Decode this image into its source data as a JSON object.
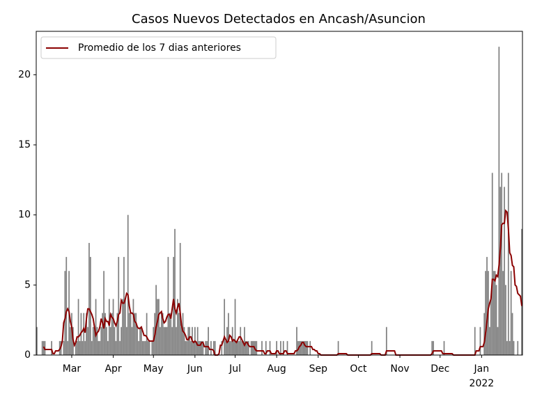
{
  "chart_data": {
    "type": "bar_line",
    "title": "Casos Nuevos Detectados en Ancash/Asuncion",
    "values": [
      2,
      0,
      0,
      0,
      1,
      1,
      1,
      0,
      0,
      0,
      0,
      1,
      0,
      0,
      0,
      0,
      0,
      1,
      1,
      0,
      1,
      6,
      7,
      1,
      6,
      2,
      3,
      2,
      0,
      1,
      1,
      4,
      1,
      3,
      1,
      3,
      1,
      3,
      2,
      8,
      7,
      1,
      2,
      2,
      4,
      2,
      1,
      1,
      2,
      3,
      6,
      3,
      2,
      1,
      4,
      2,
      3,
      4,
      2,
      1,
      3,
      7,
      1,
      2,
      4,
      7,
      4,
      2,
      10,
      3,
      3,
      2,
      4,
      3,
      3,
      2,
      1,
      2,
      2,
      1,
      1,
      1,
      3,
      1,
      1,
      0,
      1,
      2,
      3,
      5,
      4,
      4,
      2,
      3,
      3,
      2,
      2,
      2,
      7,
      3,
      3,
      2,
      7,
      9,
      2,
      4,
      3,
      8,
      2,
      3,
      2,
      1,
      1,
      2,
      2,
      1,
      2,
      1,
      2,
      1,
      2,
      1,
      1,
      1,
      1,
      0,
      1,
      1,
      2,
      0,
      1,
      0,
      1,
      1,
      0,
      0,
      0,
      0,
      1,
      0,
      4,
      1,
      2,
      3,
      1,
      1,
      2,
      1,
      4,
      1,
      1,
      1,
      2,
      1,
      1,
      2,
      1,
      1,
      1,
      0,
      1,
      1,
      1,
      1,
      1,
      0,
      0,
      0,
      1,
      0,
      0,
      1,
      0,
      0,
      1,
      0,
      0,
      0,
      0,
      1,
      0,
      0,
      1,
      0,
      1,
      0,
      0,
      1,
      0,
      0,
      0,
      0,
      0,
      0,
      2,
      1,
      1,
      1,
      1,
      1,
      1,
      1,
      1,
      0,
      1,
      0,
      0,
      0,
      0,
      0,
      0,
      0,
      0,
      0,
      0,
      0,
      0,
      0,
      0,
      0,
      0,
      0,
      0,
      0,
      0,
      1,
      0,
      0,
      0,
      0,
      0,
      0,
      0,
      0,
      0,
      0,
      0,
      0,
      0,
      0,
      0,
      0,
      0,
      0,
      0,
      0,
      0,
      0,
      0,
      0,
      1,
      0,
      0,
      0,
      0,
      0,
      0,
      0,
      0,
      0,
      0,
      2,
      0,
      0,
      0,
      0,
      0,
      0,
      0,
      0,
      0,
      0,
      0,
      0,
      0,
      0,
      0,
      0,
      0,
      0,
      0,
      0,
      0,
      0,
      0,
      0,
      0,
      0,
      0,
      0,
      0,
      0,
      0,
      0,
      0,
      1,
      1,
      0,
      0,
      0,
      0,
      0,
      0,
      0,
      1,
      0,
      0,
      0,
      0,
      0,
      0,
      0,
      0,
      0,
      0,
      0,
      0,
      0,
      0,
      0,
      0,
      0,
      0,
      0,
      0,
      0,
      0,
      2,
      0,
      0,
      0,
      2,
      0,
      0,
      3,
      6,
      7,
      6,
      2,
      4,
      13,
      6,
      6,
      5,
      2,
      22,
      12,
      13,
      6,
      12,
      5,
      1,
      13,
      1,
      6,
      3,
      1,
      0,
      0,
      1,
      0,
      0,
      9
    ],
    "bar_color": "#808080",
    "series": [
      {
        "name": "Promedio de los 7 dias anteriores",
        "color": "#8b0000",
        "values": [
          null,
          null,
          null,
          null,
          null,
          0.6,
          0.4,
          0.4,
          0.4,
          0.4,
          0.4,
          0.4,
          0.1,
          0.1,
          0.3,
          0.3,
          0.3,
          0.4,
          0.6,
          1.0,
          2.3,
          2.6,
          3.1,
          3.3,
          3.1,
          2.4,
          2.0,
          1.1,
          0.7,
          0.9,
          1.3,
          1.3,
          1.4,
          1.6,
          1.7,
          1.9,
          1.6,
          2.6,
          3.3,
          3.3,
          3.1,
          2.9,
          2.6,
          2.0,
          1.4,
          1.6,
          1.7,
          2.0,
          2.6,
          2.3,
          1.9,
          2.6,
          2.4,
          2.4,
          2.1,
          2.9,
          2.7,
          2.6,
          2.3,
          2.1,
          2.4,
          2.9,
          3.0,
          3.9,
          3.7,
          3.7,
          4.0,
          4.4,
          4.3,
          3.5,
          3.0,
          3.0,
          2.9,
          2.4,
          2.3,
          2.0,
          1.9,
          1.9,
          2.0,
          1.7,
          1.4,
          1.4,
          1.3,
          1.1,
          1.0,
          1.0,
          1.0,
          1.0,
          1.4,
          2.0,
          2.4,
          2.9,
          3.0,
          3.1,
          2.6,
          2.3,
          2.4,
          2.7,
          2.9,
          2.9,
          2.6,
          3.3,
          4.0,
          3.3,
          3.0,
          3.4,
          3.7,
          3.0,
          2.1,
          1.7,
          1.6,
          1.4,
          1.1,
          1.1,
          1.3,
          1.3,
          1.0,
          0.9,
          1.0,
          0.9,
          0.7,
          0.7,
          0.7,
          0.9,
          0.9,
          0.6,
          0.6,
          0.6,
          0.6,
          0.4,
          0.4,
          0.4,
          0.3,
          0.0,
          0.0,
          0.0,
          0.1,
          0.7,
          0.7,
          1.0,
          1.3,
          1.1,
          0.9,
          1.0,
          1.4,
          1.3,
          1.0,
          1.1,
          1.0,
          0.9,
          1.1,
          1.3,
          1.3,
          1.1,
          0.9,
          0.7,
          0.9,
          0.9,
          0.7,
          0.6,
          0.6,
          0.6,
          0.6,
          0.4,
          0.3,
          0.3,
          0.3,
          0.3,
          0.3,
          0.3,
          0.1,
          0.1,
          0.3,
          0.3,
          0.3,
          0.1,
          0.1,
          0.1,
          0.1,
          0.3,
          0.3,
          0.1,
          0.1,
          0.1,
          0.1,
          0.3,
          0.3,
          0.1,
          0.1,
          0.1,
          0.1,
          0.1,
          0.1,
          0.3,
          0.3,
          0.4,
          0.6,
          0.7,
          0.9,
          0.9,
          0.7,
          0.6,
          0.6,
          0.6,
          0.6,
          0.6,
          0.4,
          0.4,
          0.3,
          0.3,
          0.1,
          0.1,
          0.0,
          0.0,
          0.0,
          0.0,
          0.0,
          0.0,
          0.0,
          0.0,
          0.0,
          0.0,
          0.0,
          0.0,
          0.0,
          0.1,
          0.1,
          0.1,
          0.1,
          0.1,
          0.1,
          0.1,
          0.0,
          0.0,
          0.0,
          0.0,
          0.0,
          0.0,
          0.0,
          0.0,
          0,
          0,
          0,
          0,
          0,
          0,
          0,
          0,
          0,
          0,
          0.1,
          0.1,
          0.1,
          0.1,
          0.1,
          0.1,
          0.1,
          0,
          0,
          0,
          0,
          0.3,
          0.3,
          0.3,
          0.3,
          0.3,
          0.3,
          0.3,
          0,
          0,
          0,
          0,
          0,
          0,
          0,
          0,
          0,
          0,
          0,
          0,
          0,
          0,
          0,
          0,
          0,
          0,
          0,
          0,
          0,
          0,
          0,
          0,
          0,
          0,
          0,
          0.1,
          0.3,
          0.3,
          0.3,
          0.3,
          0.3,
          0.3,
          0.3,
          0.1,
          0.1,
          0.1,
          0.1,
          0.1,
          0.1,
          0.1,
          0.1,
          0,
          0,
          0,
          0,
          0,
          0,
          0,
          0,
          0,
          0,
          0,
          0,
          0,
          0,
          0,
          0,
          0,
          0.3,
          0.3,
          0.3,
          0.6,
          0.6,
          0.6,
          0.9,
          1.6,
          2.4,
          3.3,
          3.7,
          4.0,
          5.4,
          5.4,
          5.3,
          5.7,
          5.6,
          6.4,
          7.6,
          9.3,
          9.4,
          9.4,
          10.3,
          10.2,
          9.0,
          7.3,
          7.1,
          6.4,
          6.3,
          5.0,
          4.9,
          4.4,
          4.3,
          4.2,
          3.5
        ]
      }
    ],
    "xlim": [
      -0.5,
      362.5
    ],
    "xticks": [
      {
        "value": 26,
        "label": "Mar"
      },
      {
        "value": 57,
        "label": "Apr"
      },
      {
        "value": 87,
        "label": "May"
      },
      {
        "value": 118,
        "label": "Jun"
      },
      {
        "value": 148,
        "label": "Jul"
      },
      {
        "value": 179,
        "label": "Aug"
      },
      {
        "value": 210,
        "label": "Sep"
      },
      {
        "value": 240,
        "label": "Oct"
      },
      {
        "value": 271,
        "label": "Nov"
      },
      {
        "value": 301,
        "label": "Dec"
      },
      {
        "value": 332,
        "label": "Jan"
      }
    ],
    "year_label": "2022",
    "ylim": [
      0,
      23.1
    ],
    "yticks": [
      0,
      5,
      10,
      15,
      20
    ],
    "legend": "upper left"
  }
}
